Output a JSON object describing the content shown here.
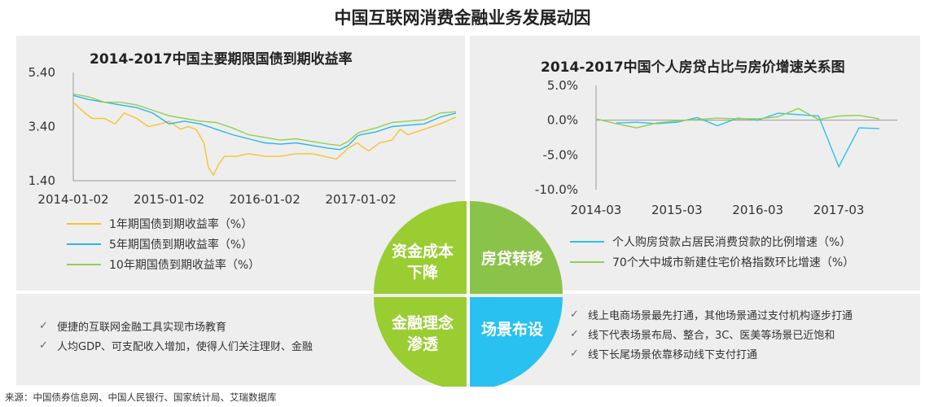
{
  "page": {
    "title": "中国互联网消费金融业务发展动因",
    "source": "来源：中国债券信息网、中国人民银行、国家统计局、艾瑞数据库"
  },
  "colors": {
    "panel_bg": "#eeeeee",
    "green": "#9acd32",
    "light_green": "#8bc34a",
    "cyan": "#29c1f0",
    "yellow": "#f7c948",
    "bond_1y": "#f4c430",
    "bond_5y": "#2bb5e8",
    "bond_10y": "#92d050"
  },
  "chart_data": [
    {
      "type": "line",
      "title": "2014-2017中国主要期限国债到期收益率",
      "x_ticks": [
        "2014-01-02",
        "2015-01-02",
        "2016-01-02",
        "2017-01-02"
      ],
      "x_range": [
        "2014-01-02",
        "2017-12-31"
      ],
      "y_ticks": [
        "5.40",
        "3.40",
        "1.40"
      ],
      "ylim": [
        1.4,
        5.4
      ],
      "legend_placement": "bottom-left",
      "series": [
        {
          "name": "1年期国债到期收益率（%）",
          "color": "#f4c430",
          "points": [
            [
              "2014-01-02",
              4.3
            ],
            [
              "2014-02-15",
              3.9
            ],
            [
              "2014-03-15",
              3.7
            ],
            [
              "2014-05-01",
              3.7
            ],
            [
              "2014-06-10",
              3.5
            ],
            [
              "2014-07-15",
              3.9
            ],
            [
              "2014-09-01",
              3.7
            ],
            [
              "2014-10-15",
              3.4
            ],
            [
              "2014-12-01",
              3.5
            ],
            [
              "2015-01-02",
              3.6
            ],
            [
              "2015-02-15",
              3.3
            ],
            [
              "2015-03-15",
              3.4
            ],
            [
              "2015-04-15",
              3.3
            ],
            [
              "2015-05-15",
              2.8
            ],
            [
              "2015-06-01",
              1.9
            ],
            [
              "2015-06-20",
              1.6
            ],
            [
              "2015-07-10",
              2.0
            ],
            [
              "2015-08-01",
              2.3
            ],
            [
              "2015-09-15",
              2.3
            ],
            [
              "2015-11-01",
              2.4
            ],
            [
              "2016-01-02",
              2.3
            ],
            [
              "2016-03-01",
              2.3
            ],
            [
              "2016-05-01",
              2.4
            ],
            [
              "2016-07-01",
              2.4
            ],
            [
              "2016-08-15",
              2.3
            ],
            [
              "2016-10-01",
              2.2
            ],
            [
              "2016-11-15",
              2.6
            ],
            [
              "2016-12-20",
              2.8
            ],
            [
              "2017-01-02",
              2.7
            ],
            [
              "2017-02-01",
              2.5
            ],
            [
              "2017-03-15",
              2.8
            ],
            [
              "2017-05-01",
              2.9
            ],
            [
              "2017-06-01",
              3.3
            ],
            [
              "2017-07-01",
              3.1
            ],
            [
              "2017-09-01",
              3.3
            ],
            [
              "2017-11-01",
              3.5
            ],
            [
              "2017-12-31",
              3.75
            ]
          ]
        },
        {
          "name": "5年期国债到期收益率（%）",
          "color": "#2bb5e8",
          "points": [
            [
              "2014-01-02",
              4.55
            ],
            [
              "2014-03-01",
              4.4
            ],
            [
              "2014-05-01",
              4.3
            ],
            [
              "2014-07-01",
              4.2
            ],
            [
              "2014-09-01",
              4.1
            ],
            [
              "2014-11-01",
              3.9
            ],
            [
              "2015-01-02",
              3.5
            ],
            [
              "2015-03-01",
              3.6
            ],
            [
              "2015-05-01",
              3.5
            ],
            [
              "2015-07-01",
              3.3
            ],
            [
              "2015-09-01",
              3.1
            ],
            [
              "2015-11-01",
              2.95
            ],
            [
              "2016-01-02",
              2.8
            ],
            [
              "2016-03-01",
              2.75
            ],
            [
              "2016-05-01",
              2.8
            ],
            [
              "2016-07-01",
              2.7
            ],
            [
              "2016-09-01",
              2.6
            ],
            [
              "2016-10-15",
              2.55
            ],
            [
              "2016-11-15",
              2.7
            ],
            [
              "2016-12-20",
              3.05
            ],
            [
              "2017-01-02",
              3.1
            ],
            [
              "2017-03-01",
              3.2
            ],
            [
              "2017-05-01",
              3.4
            ],
            [
              "2017-07-01",
              3.45
            ],
            [
              "2017-09-01",
              3.5
            ],
            [
              "2017-11-01",
              3.75
            ],
            [
              "2017-12-31",
              3.9
            ]
          ]
        },
        {
          "name": "10年期国债到期收益率（%）",
          "color": "#92d050",
          "points": [
            [
              "2014-01-02",
              4.6
            ],
            [
              "2014-03-01",
              4.5
            ],
            [
              "2014-05-01",
              4.3
            ],
            [
              "2014-07-01",
              4.3
            ],
            [
              "2014-09-01",
              4.2
            ],
            [
              "2014-11-01",
              4.0
            ],
            [
              "2015-01-02",
              3.8
            ],
            [
              "2015-03-01",
              3.7
            ],
            [
              "2015-05-01",
              3.6
            ],
            [
              "2015-07-01",
              3.55
            ],
            [
              "2015-09-01",
              3.35
            ],
            [
              "2015-11-01",
              3.1
            ],
            [
              "2016-01-02",
              3.0
            ],
            [
              "2016-03-01",
              2.9
            ],
            [
              "2016-05-01",
              2.95
            ],
            [
              "2016-07-01",
              2.85
            ],
            [
              "2016-09-01",
              2.75
            ],
            [
              "2016-10-15",
              2.7
            ],
            [
              "2016-11-15",
              2.85
            ],
            [
              "2016-12-20",
              3.15
            ],
            [
              "2017-01-02",
              3.2
            ],
            [
              "2017-03-01",
              3.35
            ],
            [
              "2017-05-01",
              3.55
            ],
            [
              "2017-07-01",
              3.6
            ],
            [
              "2017-09-01",
              3.65
            ],
            [
              "2017-11-01",
              3.9
            ],
            [
              "2017-12-31",
              3.95
            ]
          ]
        }
      ]
    },
    {
      "type": "line",
      "title": "2014-2017中国个人房贷占比与房价增速关系图",
      "x_ticks": [
        "2014-03",
        "2015-03",
        "2016-03",
        "2017-03"
      ],
      "y_ticks": [
        "5.0%",
        "0.0%",
        "-5.0%",
        "-10.0%"
      ],
      "ylim": [
        -10,
        5
      ],
      "legend_placement": "bottom-left",
      "series": [
        {
          "name": "个人购房贷款占居民消费贷款的比例增速（%）",
          "color": "#29c1f0",
          "points": [
            [
              "2014-06",
              -0.4
            ],
            [
              "2014-09",
              -0.3
            ],
            [
              "2014-12",
              -0.5
            ],
            [
              "2015-03",
              -0.3
            ],
            [
              "2015-06",
              0.4
            ],
            [
              "2015-09",
              -0.8
            ],
            [
              "2015-12",
              0.3
            ],
            [
              "2016-03",
              0.0
            ],
            [
              "2016-06",
              1.0
            ],
            [
              "2016-09",
              0.8
            ],
            [
              "2016-12",
              0.6
            ],
            [
              "2017-03",
              -6.7
            ],
            [
              "2017-06",
              -1.1
            ],
            [
              "2017-09",
              -1.2
            ]
          ]
        },
        {
          "name": "70个大中城市新建住宅价格指数环比增速（%）",
          "color": "#92d050",
          "points": [
            [
              "2014-03",
              0.2
            ],
            [
              "2014-06",
              -0.5
            ],
            [
              "2014-09",
              -1.1
            ],
            [
              "2014-12",
              -0.4
            ],
            [
              "2015-03",
              -0.1
            ],
            [
              "2015-06",
              0.1
            ],
            [
              "2015-09",
              0.3
            ],
            [
              "2015-12",
              0.2
            ],
            [
              "2016-03",
              0.2
            ],
            [
              "2016-06",
              0.5
            ],
            [
              "2016-09",
              1.7
            ],
            [
              "2016-12",
              0.1
            ],
            [
              "2017-03",
              0.6
            ],
            [
              "2017-06",
              0.7
            ],
            [
              "2017-09",
              0.2
            ]
          ]
        }
      ]
    }
  ],
  "center": {
    "q1": "资金成本下降",
    "q2": "房贷转移",
    "q3": "金融理念渗透",
    "q4": "场景布设"
  },
  "left_bullets": [
    "便捷的互联网金融工具实现市场教育",
    "人均GDP、可支配收入增加，使得人们关注理财、金融"
  ],
  "right_bullets": [
    "线上电商场景最先打通，其他场景通过支付机构逐步打通",
    "线下代表场景布局、整合，3C、医美等场景已近饱和",
    "线下长尾场景依靠移动线下支付打通"
  ]
}
